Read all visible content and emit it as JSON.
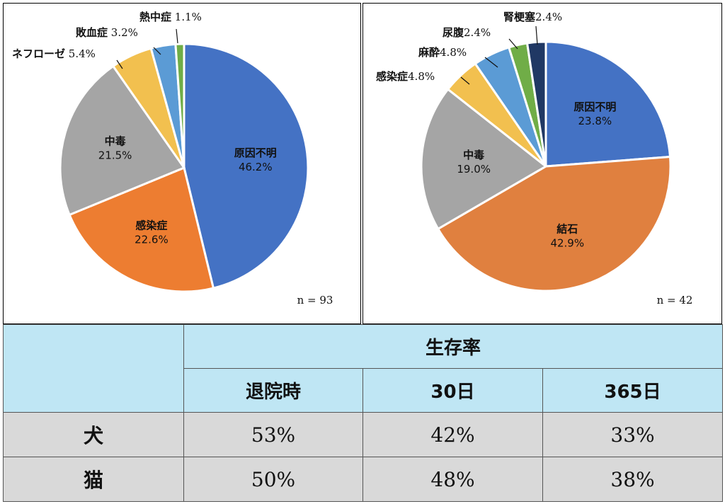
{
  "chart_data": [
    {
      "type": "pie",
      "n_label": "n = 93",
      "colors": [
        "#4472c4",
        "#ed7d31",
        "#a5a5a5",
        "#ffc000",
        "#5b9bd5",
        "#70ad47"
      ],
      "slices": [
        {
          "label": "原因不明",
          "value": 46.2,
          "pct": "46.2%",
          "color": "#4472c4"
        },
        {
          "label": "感染症",
          "value": 22.6,
          "pct": "22.6%",
          "color": "#ed7d31"
        },
        {
          "label": "中毒",
          "value": 21.5,
          "pct": "21.5%",
          "color": "#a5a5a5"
        },
        {
          "label": "ネフローゼ",
          "value": 5.4,
          "pct": "5.4%",
          "color": "#f2c04f"
        },
        {
          "label": "敗血症",
          "value": 3.2,
          "pct": "3.2%",
          "color": "#5b9bd5"
        },
        {
          "label": "熱中症",
          "value": 1.1,
          "pct": "1.1%",
          "color": "#70ad47"
        }
      ]
    },
    {
      "type": "pie",
      "n_label": "n = 42",
      "slices": [
        {
          "label": "原因不明",
          "value": 23.8,
          "pct": "23.8%",
          "color": "#4472c4"
        },
        {
          "label": "結石",
          "value": 42.9,
          "pct": "42.9%",
          "color": "#e0803f"
        },
        {
          "label": "中毒",
          "value": 19.0,
          "pct": "19.0%",
          "color": "#a5a5a5"
        },
        {
          "label": "感染症",
          "value": 4.8,
          "pct": "4.8%",
          "color": "#f2c04f"
        },
        {
          "label": "麻酔",
          "value": 4.8,
          "pct": "4.8%",
          "color": "#5b9bd5"
        },
        {
          "label": "尿腹",
          "value": 2.4,
          "pct": "2.4%",
          "color": "#70ad47"
        },
        {
          "label": "腎梗塞",
          "value": 2.4,
          "pct": "2.4%",
          "color": "#203864"
        }
      ]
    }
  ],
  "table": {
    "title": "生存率",
    "columns": [
      "退院時",
      "30日",
      "365日"
    ],
    "rows": [
      {
        "label": "犬",
        "values": [
          "53%",
          "42%",
          "33%"
        ]
      },
      {
        "label": "猫",
        "values": [
          "50%",
          "48%",
          "38%"
        ]
      }
    ]
  }
}
